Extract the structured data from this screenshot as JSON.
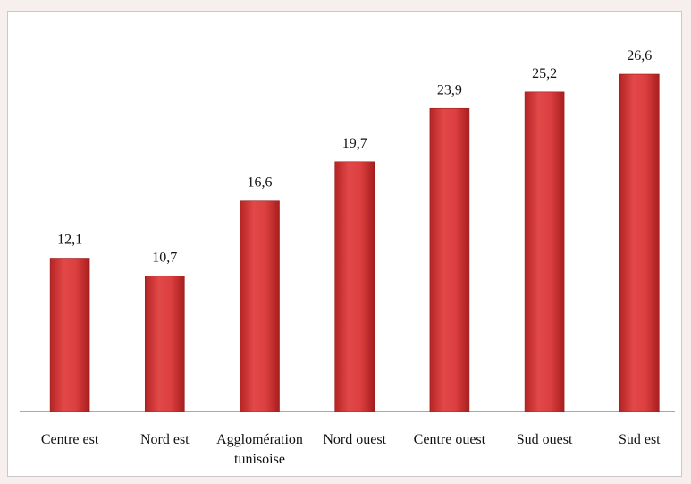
{
  "chart_data": {
    "type": "bar",
    "categories": [
      "Centre est",
      "Nord est",
      "Agglomération tunisoise",
      "Nord ouest",
      "Centre ouest",
      "Sud ouest",
      "Sud est"
    ],
    "values": [
      12.1,
      10.7,
      16.6,
      19.7,
      23.9,
      25.2,
      26.6
    ],
    "value_labels": [
      "12,1",
      "10,7",
      "16,6",
      "19,7",
      "23,9",
      "25,2",
      "26,6"
    ],
    "color": "#d63a3a"
  }
}
